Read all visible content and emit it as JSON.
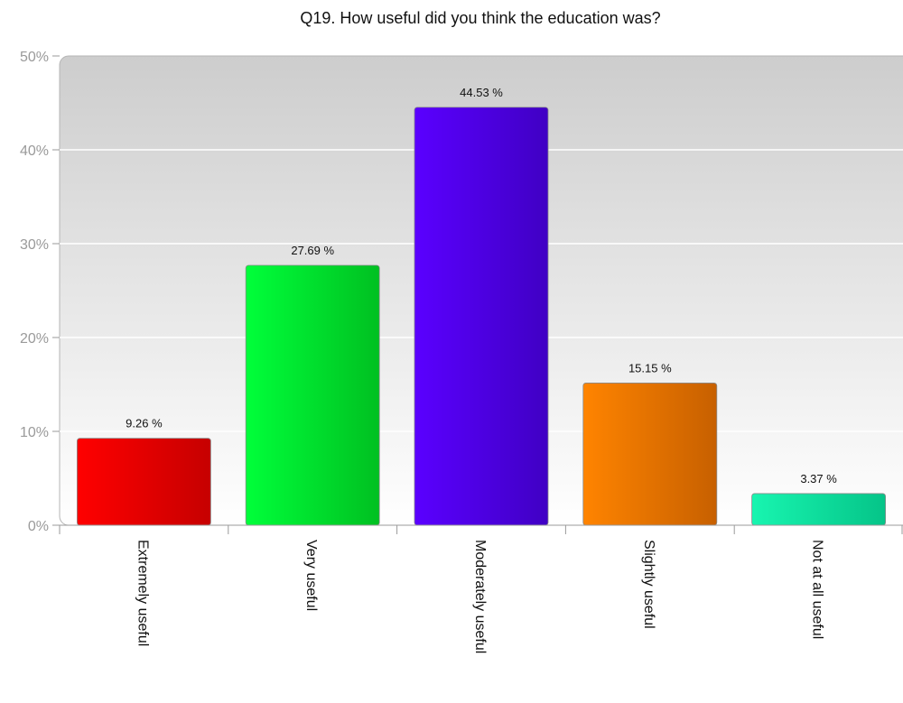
{
  "chart_data": {
    "type": "bar",
    "title": "Q19. How useful did you think the education was?",
    "xlabel": "",
    "ylabel": "",
    "categories": [
      "Extremely useful",
      "Very useful",
      "Moderately useful",
      "Slightly useful",
      "Not at all useful"
    ],
    "values": [
      9.26,
      27.69,
      44.53,
      15.15,
      3.37
    ],
    "data_labels": [
      "9.26 %",
      "27.69 %",
      "44.53 %",
      "15.15 %",
      "3.37 %"
    ],
    "ylim": [
      0,
      50
    ],
    "yticks": [
      0,
      10,
      20,
      30,
      40,
      50
    ],
    "ytick_labels": [
      "0%",
      "10%",
      "20%",
      "30%",
      "40%",
      "50%"
    ],
    "grid": true,
    "legend": "none",
    "colors": [
      [
        "#ff0000",
        "#c60000"
      ],
      [
        "#00ff3a",
        "#00c021"
      ],
      [
        "#5a00ff",
        "#4000c4"
      ],
      [
        "#ff8400",
        "#c76000"
      ],
      [
        "#18f5b0",
        "#05c488"
      ]
    ],
    "plot_background": [
      "#cdcdcd",
      "#ffffff"
    ]
  }
}
